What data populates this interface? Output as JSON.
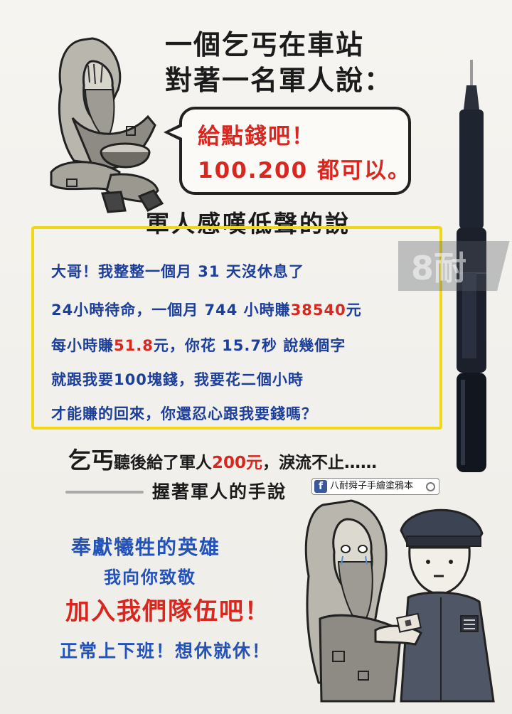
{
  "title": {
    "line1": "一個乞丐在車站",
    "line2": "對著一名軍人說："
  },
  "beggar_speech": {
    "line1": "給點錢吧！",
    "line2": "100.200 都可以。"
  },
  "soldier_intro": "軍人感嘆低聲的說",
  "soldier_speech": [
    {
      "parts": [
        "大哥！我整整一個月 31 天沒休息了"
      ]
    },
    {
      "parts": [
        "24小時待命，一個月 744 小時賺",
        "38540",
        "元"
      ]
    },
    {
      "parts": [
        "每小時賺",
        "51.8",
        "元，你花 15.7秒 說幾個字"
      ]
    },
    {
      "parts": [
        "就跟我要100塊錢，我要花二個小時"
      ]
    },
    {
      "parts": [
        "才能賺的回來，你還忍心跟我要錢嗎？"
      ]
    }
  ],
  "aftermath": {
    "subject": "乞丐",
    "text_a": "聽後給了軍人",
    "amount": "200元",
    "text_b": "，淚流不止……",
    "line2": "握著軍人的手說"
  },
  "credit": {
    "icon": "facebook-icon",
    "label": "八耐舜子手繪塗鴉本"
  },
  "beggar_reply": {
    "line1": "奉獻犧牲的英雄",
    "line2": "我向你致敬",
    "line3": "加入我們隊伍吧！",
    "line4": "正常上下班！想休就休！"
  },
  "watermark": "8耐",
  "colors": {
    "red": "#d9271f",
    "blue": "#2352b8",
    "yellow_frame": "#f0d814",
    "ink": "#1b1b1b"
  }
}
